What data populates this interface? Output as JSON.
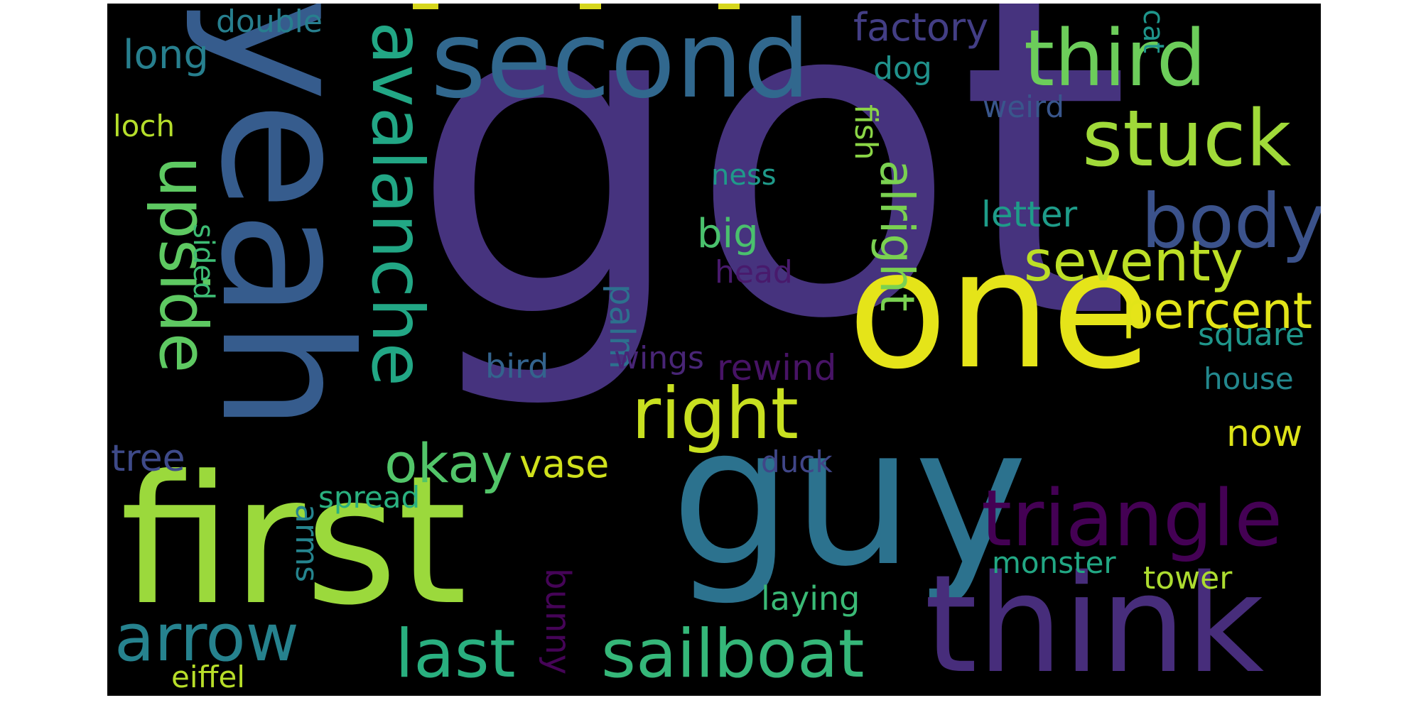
{
  "words": [
    {
      "text": "got",
      "color": "#46337e"
    },
    {
      "text": "yeah",
      "color": "#365c8d"
    },
    {
      "text": "one",
      "color": "#e5e419"
    },
    {
      "text": "first",
      "color": "#9bd93c"
    },
    {
      "text": "guy",
      "color": "#2c728e"
    },
    {
      "text": "think",
      "color": "#472d7b"
    },
    {
      "text": "second",
      "color": "#31688e"
    },
    {
      "text": "third",
      "color": "#6ccd5a"
    },
    {
      "text": "stuck",
      "color": "#a0da39"
    },
    {
      "text": "body",
      "color": "#3b528b"
    },
    {
      "text": "avalanche",
      "color": "#22a785"
    },
    {
      "text": "upside",
      "color": "#5ec962"
    },
    {
      "text": "right",
      "color": "#c8e020"
    },
    {
      "text": "triangle",
      "color": "#440154"
    },
    {
      "text": "seventy",
      "color": "#bddf26"
    },
    {
      "text": "percent",
      "color": "#e2e418"
    },
    {
      "text": "sailboat",
      "color": "#35b779"
    },
    {
      "text": "last",
      "color": "#29af7f"
    },
    {
      "text": "arrow",
      "color": "#26828e"
    },
    {
      "text": "okay",
      "color": "#52c569"
    },
    {
      "text": "factory",
      "color": "#433e85"
    },
    {
      "text": "long",
      "color": "#277f8e"
    },
    {
      "text": "double",
      "color": "#277f8e"
    },
    {
      "text": "dog",
      "color": "#20928c"
    },
    {
      "text": "cat",
      "color": "#1f958b"
    },
    {
      "text": "weird",
      "color": "#39568c"
    },
    {
      "text": "loch",
      "color": "#b5de2b"
    },
    {
      "text": "fish",
      "color": "#8bd646"
    },
    {
      "text": "ness",
      "color": "#1f9a8a"
    },
    {
      "text": "letter",
      "color": "#1e9c89"
    },
    {
      "text": "big",
      "color": "#4ac16d"
    },
    {
      "text": "alright",
      "color": "#7ad151"
    },
    {
      "text": "sided",
      "color": "#3dbc74"
    },
    {
      "text": "head",
      "color": "#481a6c"
    },
    {
      "text": "palm",
      "color": "#2d708e"
    },
    {
      "text": "square",
      "color": "#1f968b"
    },
    {
      "text": "bird",
      "color": "#33638d"
    },
    {
      "text": "wings",
      "color": "#482576"
    },
    {
      "text": "rewind",
      "color": "#471365"
    },
    {
      "text": "house",
      "color": "#23888e"
    },
    {
      "text": "now",
      "color": "#dde318"
    },
    {
      "text": "tree",
      "color": "#3e4a89"
    },
    {
      "text": "duck",
      "color": "#404688"
    },
    {
      "text": "vase",
      "color": "#d0e11c"
    },
    {
      "text": "spread",
      "color": "#2ab07f"
    },
    {
      "text": "arms",
      "color": "#25848e"
    },
    {
      "text": "monster",
      "color": "#22a884"
    },
    {
      "text": "tower",
      "color": "#addc30"
    },
    {
      "text": "laying",
      "color": "#3aba76"
    },
    {
      "text": "bunny",
      "color": "#450457"
    },
    {
      "text": "eiffel",
      "color": "#b8de29"
    }
  ]
}
